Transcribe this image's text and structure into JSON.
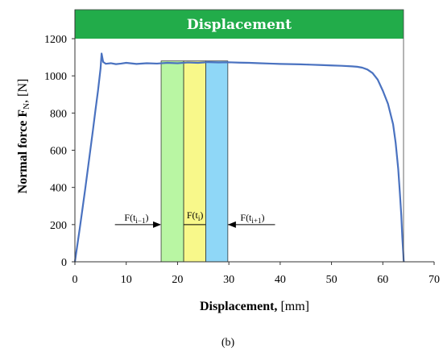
{
  "chart_data": {
    "type": "line",
    "banner": "Displacement",
    "xlabel_bold": "Displacement,",
    "xlabel_unit": " [mm]",
    "ylabel_main": "Normal force F",
    "ylabel_sub": "N",
    "ylabel_unit": ", [N]",
    "xlim": [
      0,
      70
    ],
    "ylim": [
      0,
      1200
    ],
    "xticks": [
      0,
      10,
      20,
      30,
      40,
      50,
      60,
      70
    ],
    "yticks": [
      0,
      200,
      400,
      600,
      800,
      1000,
      1200
    ],
    "caption": "(b)",
    "colors": {
      "banner": "#22ac4a",
      "line": "#4a72c0",
      "band_left": "#b9f6a3",
      "band_mid": "#f8f88a",
      "band_right": "#8fd7f7"
    },
    "bands": [
      {
        "x0": 16.8,
        "x1": 21.2,
        "color_key": "band_left"
      },
      {
        "x0": 21.2,
        "x1": 25.5,
        "color_key": "band_mid"
      },
      {
        "x0": 25.5,
        "x1": 29.8,
        "color_key": "band_right"
      }
    ],
    "annotations": [
      {
        "base": "F(t",
        "sub": "i−1",
        "close": ")"
      },
      {
        "base": "F(t",
        "sub": "i",
        "close": ")"
      },
      {
        "base": "F(t",
        "sub": "i+1",
        "close": ")"
      }
    ],
    "series": [
      {
        "x": [
          0,
          0.5,
          1,
          1.5,
          2,
          2.5,
          3,
          3.5,
          4,
          4.5,
          5,
          5.2,
          5.5,
          6,
          7,
          8,
          9,
          10,
          12,
          14,
          16,
          18,
          20,
          22,
          24,
          26,
          28,
          30,
          32,
          34,
          36,
          38,
          40,
          42,
          44,
          46,
          48,
          50,
          52,
          54,
          55,
          56,
          57,
          58,
          59,
          60,
          61,
          62,
          62.5,
          63,
          63.3,
          63.6,
          63.8,
          64,
          64.05,
          64.1
        ],
        "y": [
          0,
          95,
          190,
          290,
          390,
          495,
          600,
          705,
          815,
          920,
          1040,
          1120,
          1075,
          1065,
          1068,
          1063,
          1066,
          1070,
          1064,
          1068,
          1066,
          1070,
          1068,
          1072,
          1070,
          1074,
          1072,
          1073,
          1071,
          1070,
          1068,
          1066,
          1064,
          1063,
          1062,
          1060,
          1058,
          1056,
          1054,
          1051,
          1049,
          1044,
          1034,
          1015,
          980,
          920,
          850,
          740,
          640,
          500,
          380,
          250,
          130,
          40,
          10,
          0
        ]
      }
    ]
  }
}
